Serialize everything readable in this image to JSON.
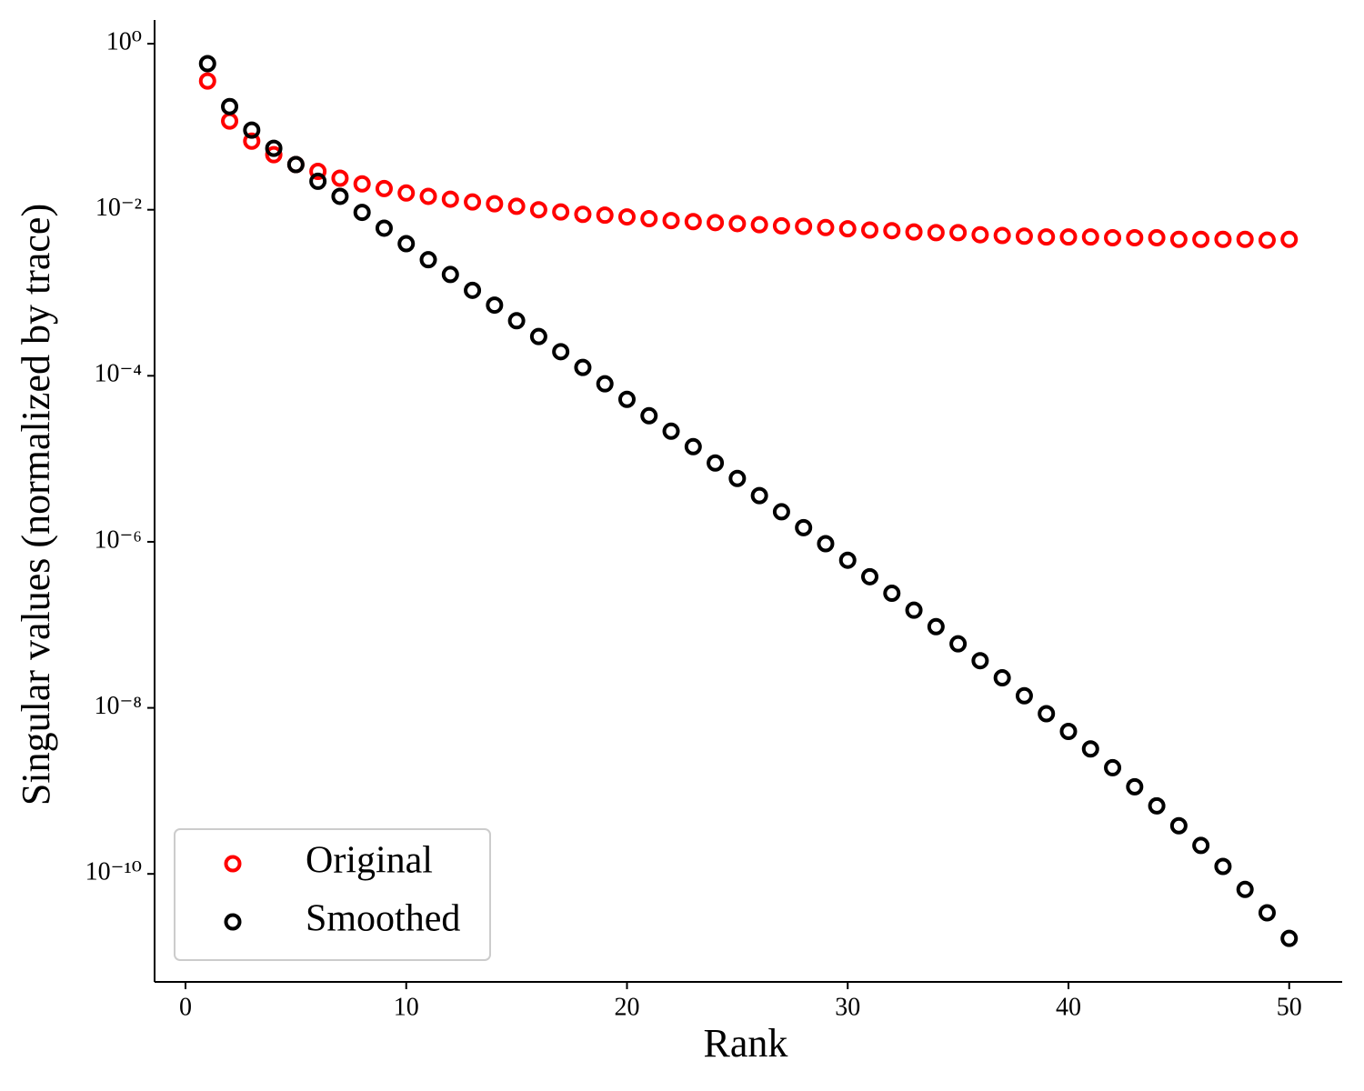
{
  "chart_data": {
    "type": "scatter",
    "xlabel": "Rank",
    "ylabel": "Singular values (normalized by trace)",
    "log_y": true,
    "legend": "lower left",
    "x": [
      1,
      2,
      3,
      4,
      5,
      6,
      7,
      8,
      9,
      10,
      11,
      12,
      13,
      14,
      15,
      16,
      17,
      18,
      19,
      20,
      21,
      22,
      23,
      24,
      25,
      26,
      27,
      28,
      29,
      30,
      31,
      32,
      33,
      34,
      35,
      36,
      37,
      38,
      39,
      40,
      41,
      42,
      43,
      44,
      45,
      46,
      47,
      48,
      49,
      50
    ],
    "series": [
      {
        "name": "Original",
        "color": "#ff0000",
        "values": [
          0.355,
          0.117,
          0.067,
          0.046,
          0.035,
          0.029,
          0.024,
          0.0205,
          0.018,
          0.0159,
          0.0145,
          0.0134,
          0.0124,
          0.0118,
          0.011,
          0.01,
          0.0094,
          0.0088,
          0.0086,
          0.0082,
          0.0078,
          0.0074,
          0.0072,
          0.007,
          0.0068,
          0.0066,
          0.0064,
          0.0063,
          0.0061,
          0.0059,
          0.0057,
          0.0056,
          0.0054,
          0.0053,
          0.0053,
          0.005,
          0.0049,
          0.0048,
          0.0047,
          0.0047,
          0.0047,
          0.0046,
          0.0046,
          0.0046,
          0.0044,
          0.0044,
          0.0044,
          0.0044,
          0.0043,
          0.0044
        ]
      },
      {
        "name": "Smoothed",
        "color": "#000000",
        "values": [
          0.575,
          0.175,
          0.091,
          0.055,
          0.035,
          0.022,
          0.0145,
          0.0093,
          0.006,
          0.0039,
          0.0025,
          0.00166,
          0.00107,
          0.00071,
          0.00046,
          0.000297,
          0.000195,
          0.000126,
          8e-05,
          5.2e-05,
          3.3e-05,
          2.15e-05,
          1.4e-05,
          8.9e-06,
          5.8e-06,
          3.6e-06,
          2.3e-06,
          1.48e-06,
          9.5e-07,
          6e-07,
          3.8e-07,
          2.4e-07,
          1.5e-07,
          9.5e-08,
          5.9e-08,
          3.7e-08,
          2.3e-08,
          1.4e-08,
          8.5e-09,
          5.2e-09,
          3.2e-09,
          1.9e-09,
          1.12e-09,
          6.6e-10,
          3.8e-10,
          2.2e-10,
          1.23e-10,
          6.5e-11,
          3.4e-11,
          1.67e-11
        ]
      }
    ],
    "xlim": [
      -1.4,
      52.4
    ],
    "ylim": [
      5e-12,
      1.93
    ],
    "xticks": [
      0,
      10,
      20,
      30,
      40,
      50
    ],
    "yticks": [
      {
        "value": 1,
        "label": "10⁰"
      },
      {
        "value": 0.01,
        "label": "10⁻²"
      },
      {
        "value": 0.0001,
        "label": "10⁻⁴"
      },
      {
        "value": 1e-06,
        "label": "10⁻⁶"
      },
      {
        "value": 1e-08,
        "label": "10⁻⁸"
      },
      {
        "value": 1e-10,
        "label": "10⁻¹⁰"
      }
    ]
  }
}
